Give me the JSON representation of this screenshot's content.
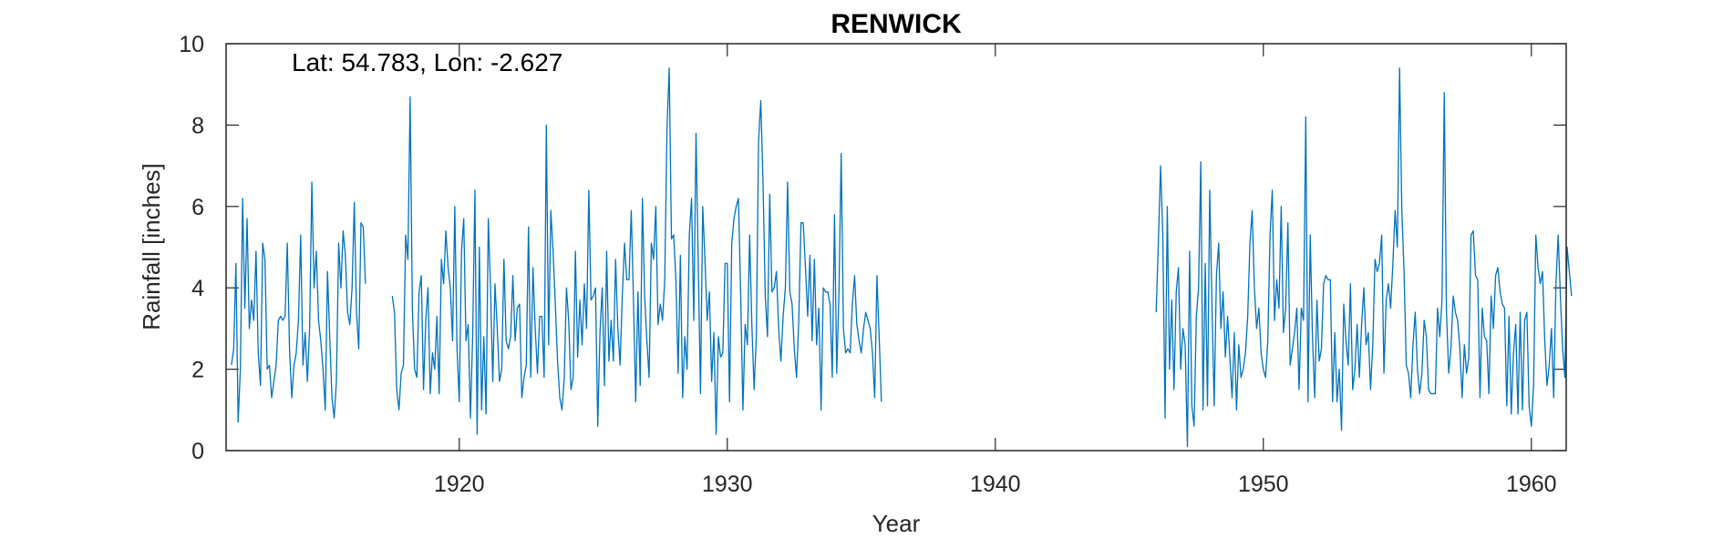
{
  "chart_data": {
    "type": "line",
    "title": "RENWICK",
    "annotation": "Lat: 54.783, Lon: -2.627",
    "xlabel": "Year",
    "ylabel": "Rainfall [inches]",
    "xlim": [
      1911.3,
      1961.3
    ],
    "ylim": [
      0,
      10
    ],
    "xticks": [
      1920,
      1930,
      1940,
      1950,
      1960
    ],
    "xtick_labels": [
      "1920",
      "1930",
      "1940",
      "1950",
      "1960"
    ],
    "yticks": [
      0,
      2,
      4,
      6,
      8,
      10
    ],
    "ytick_labels": [
      "0",
      "2",
      "4",
      "6",
      "8",
      "10"
    ],
    "grid": false,
    "box": true,
    "series": [
      {
        "color": "#0072BD",
        "segments": [
          {
            "start": 1911.5,
            "step": 0.0833333,
            "values": [
              2.1,
              2.5,
              4.6,
              0.7,
              2.0,
              6.2,
              3.5,
              5.7,
              3.0,
              3.7,
              3.2,
              4.9,
              2.4,
              1.6,
              5.1,
              4.7,
              2.0,
              2.1,
              1.3,
              1.7,
              2.1,
              3.2,
              3.3,
              3.2,
              3.3,
              5.1,
              2.5,
              1.3,
              2.1,
              2.4,
              3.2,
              5.3,
              2.1,
              2.9,
              1.7,
              3.0,
              6.6,
              4.0,
              4.9,
              3.2,
              2.7,
              2.0,
              1.0,
              4.4,
              2.8,
              1.3,
              0.8,
              1.7,
              5.1,
              4.0,
              5.4,
              4.8,
              3.4,
              3.1,
              4.0,
              6.1,
              3.4,
              2.5,
              5.6,
              5.5,
              4.1
            ]
          },
          {
            "start": 1917.5,
            "step": 0.0833333,
            "values": [
              3.8,
              3.4,
              1.5,
              1.0,
              1.9,
              2.1,
              5.3,
              4.7,
              8.7,
              3.5,
              2.0,
              1.8,
              3.9,
              4.3,
              1.5,
              3.2,
              4.0,
              1.4,
              2.4,
              2.0,
              3.3,
              1.4,
              4.7,
              4.1,
              5.4,
              4.5,
              4.0,
              2.7,
              6.0,
              2.5,
              1.2,
              4.9,
              5.7,
              2.7,
              3.1,
              0.8,
              2.8,
              6.4,
              0.4,
              5.0,
              1.0,
              2.8,
              0.9,
              5.7,
              4.0,
              1.7,
              4.1,
              3.0,
              1.7,
              2.0,
              4.7,
              2.7,
              2.5,
              2.8,
              4.3,
              2.7,
              3.5,
              3.6,
              1.3,
              1.8,
              2.1,
              5.5,
              1.8,
              4.5,
              3.0,
              1.9,
              3.3,
              3.3,
              1.8,
              8.0,
              2.6,
              5.9,
              4.9,
              3.6,
              2.2,
              1.3,
              1.0,
              1.8,
              4.0,
              3.2,
              1.5,
              1.8,
              4.9,
              2.3,
              3.7,
              2.6,
              4.1,
              3.0,
              6.4,
              3.7,
              3.8,
              4.0,
              0.6,
              2.9,
              4.0,
              1.6,
              4.9,
              2.2,
              3.2,
              2.2,
              4.7,
              3.0,
              2.1,
              3.8,
              5.1,
              4.2,
              4.2,
              5.9,
              3.7,
              1.2,
              3.9,
              1.6,
              6.2,
              3.8,
              2.7,
              1.8,
              5.1,
              4.7,
              6.0,
              3.1,
              3.6,
              3.2,
              4.2,
              7.9,
              9.4,
              5.2,
              5.3,
              4.2,
              1.9,
              4.8,
              1.3,
              2.8,
              2.0,
              5.3,
              6.2,
              3.2,
              7.8,
              4.6,
              1.4,
              6.0,
              4.7,
              3.2,
              3.9,
              1.7,
              2.9,
              0.4,
              2.8,
              2.3,
              2.4,
              4.6,
              4.6,
              1.2,
              5.1,
              5.7,
              6.0,
              6.2,
              3.8,
              1.0,
              3.1,
              2.6,
              5.3,
              3.1,
              1.5,
              2.8,
              7.6,
              8.6,
              6.6,
              3.8,
              2.8,
              6.3,
              3.9,
              4.0,
              4.4,
              3.0,
              2.2,
              3.3,
              4.0,
              6.6,
              3.9,
              3.6,
              2.5,
              1.8,
              3.2,
              5.6,
              5.6,
              4.5,
              3.3,
              4.8,
              2.7,
              4.7,
              2.6,
              3.5,
              1.0,
              4.0,
              3.9,
              3.9,
              3.6,
              1.8,
              5.8,
              1.9,
              3.9,
              7.3,
              3.0,
              2.4,
              2.5,
              2.4,
              3.6,
              4.3,
              3.1,
              2.7,
              2.4,
              3.0,
              3.4,
              3.2,
              3.0,
              2.4,
              1.3,
              4.3,
              2.8,
              1.2
            ]
          },
          {
            "start": 1946.0,
            "step": 0.0833333,
            "values": [
              3.4,
              5.1,
              7.0,
              5.3,
              0.8,
              6.0,
              2.0,
              3.7,
              1.5,
              3.9,
              4.5,
              2.0,
              3.0,
              2.6,
              0.1,
              4.9,
              1.1,
              0.6,
              3.3,
              4.0,
              7.1,
              1.0,
              4.6,
              1.1,
              6.4,
              3.6,
              1.1,
              4.3,
              5.1,
              3.0,
              3.9,
              2.3,
              3.3,
              2.3,
              1.3,
              2.9,
              1.0,
              2.6,
              1.8,
              2.0,
              2.4,
              3.3,
              5.1,
              5.9,
              4.0,
              3.0,
              3.5,
              2.4,
              2.0,
              1.8,
              2.7,
              5.3,
              6.4,
              3.2,
              4.2,
              3.5,
              6.0,
              2.9,
              3.5,
              5.6,
              2.1,
              2.5,
              2.9,
              3.5,
              1.5,
              3.5,
              3.2,
              8.2,
              1.2,
              5.3,
              2.8,
              1.3,
              3.7,
              2.2,
              2.5,
              4.1,
              4.3,
              4.2,
              4.2,
              1.2,
              2.9,
              1.2,
              2.0,
              0.5,
              3.6,
              2.7,
              2.1,
              4.1,
              1.5,
              2.0,
              3.1,
              1.8,
              3.1,
              4.0,
              2.6,
              2.9,
              1.5,
              2.6,
              4.7,
              4.4,
              4.6,
              5.3,
              1.9,
              3.7,
              4.1,
              3.5,
              4.6,
              5.9,
              5.0,
              9.4,
              5.9,
              4.4,
              2.1,
              1.9,
              1.3,
              2.6,
              3.4,
              2.0,
              1.4,
              1.9,
              3.2,
              2.8,
              1.5,
              1.4,
              1.4,
              1.4,
              3.5,
              2.8,
              3.7,
              8.8,
              3.4,
              1.9,
              2.5,
              3.8,
              3.4,
              3.2,
              2.5,
              1.3,
              2.6,
              1.9,
              2.3,
              5.3,
              5.4,
              4.3,
              4.2,
              1.3,
              3.5,
              2.8,
              2.7,
              1.4,
              3.8,
              3.0,
              4.3,
              4.5,
              3.9,
              3.6,
              3.5,
              1.1,
              3.3,
              0.9,
              2.4,
              3.1,
              0.9,
              3.4,
              1.0,
              3.2,
              3.4,
              1.1,
              0.6,
              1.6,
              5.3,
              4.5,
              4.1,
              4.4,
              2.7,
              1.6,
              2.1,
              3.0,
              1.3,
              4.1,
              5.3,
              3.8,
              2.5,
              1.8,
              5.0,
              4.4,
              3.8
            ]
          }
        ]
      }
    ]
  }
}
